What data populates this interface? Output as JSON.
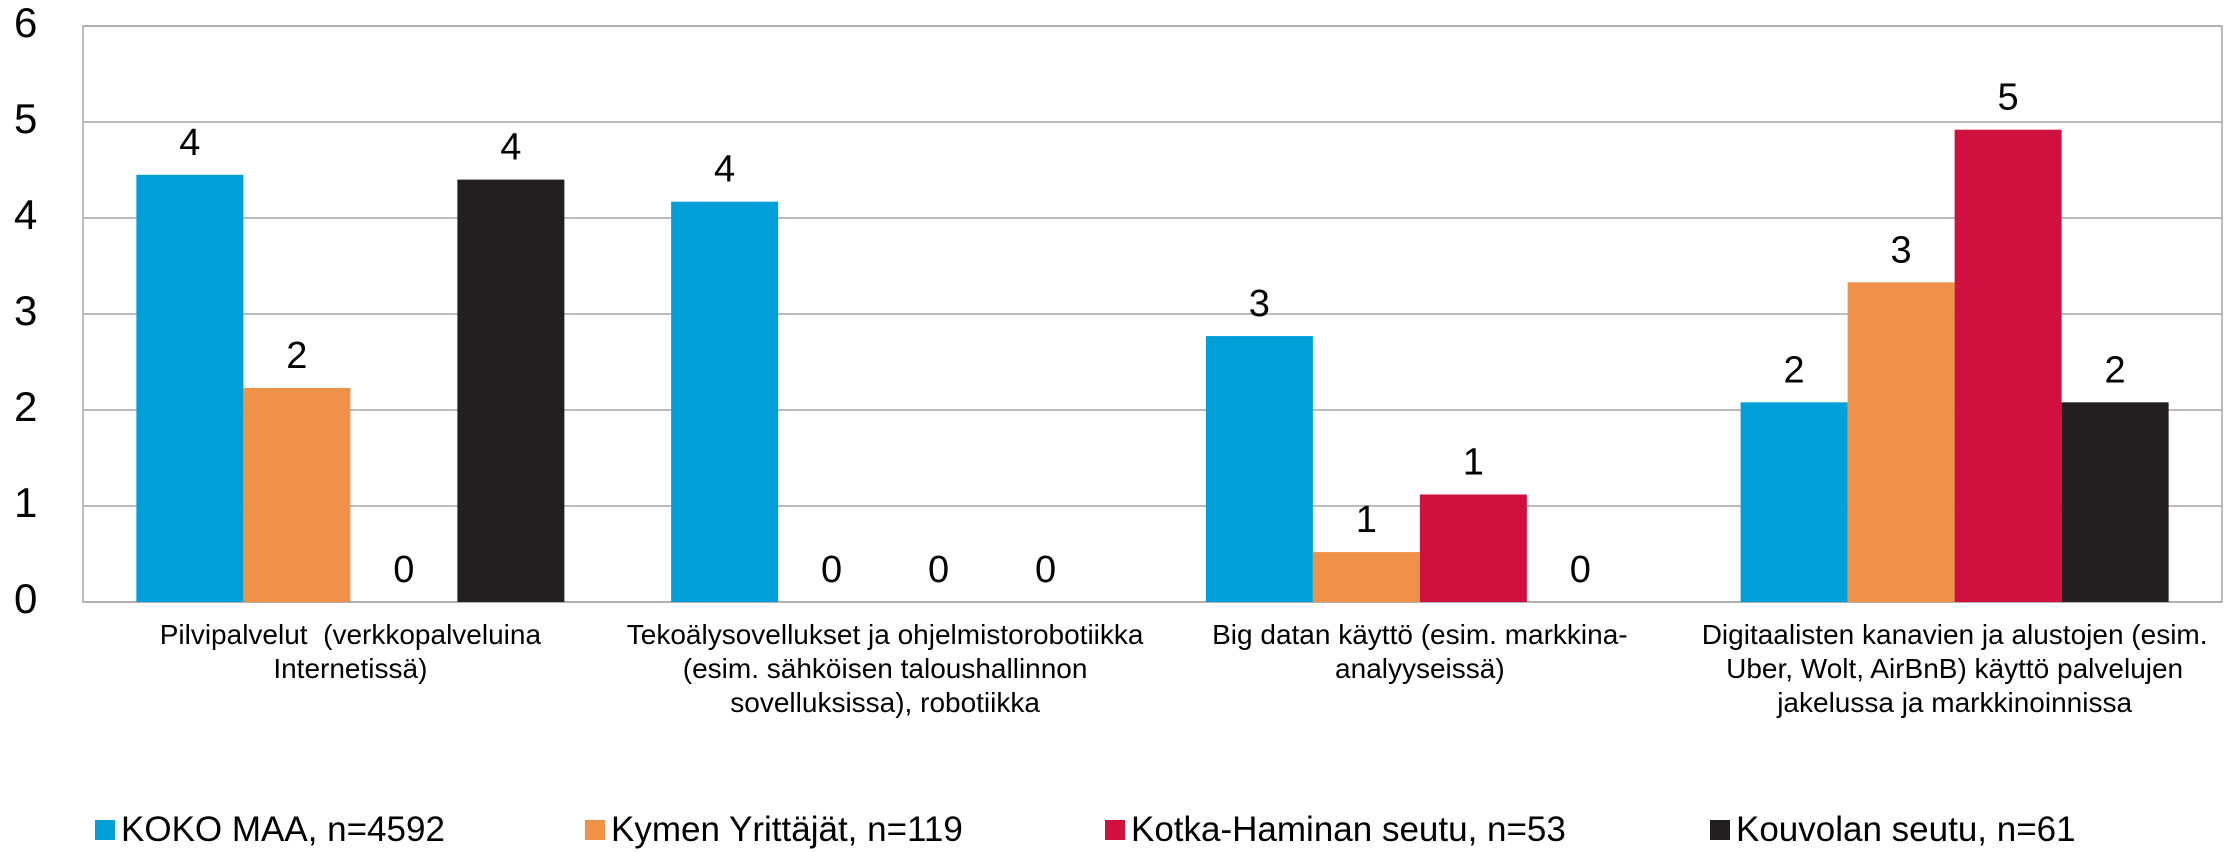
{
  "chart_data": {
    "type": "bar",
    "categories": [
      "Pilvipalvelut  (verkkopalveluina Internetissä)",
      "Tekoälysovellukset ja ohjelmistorobotiikka (esim. sähköisen taloushallinnon sovelluksissa), robotiikka",
      "Big datan käyttö (esim. markkina-analyyseissä)",
      "Digitaalisten kanavien ja alustojen (esim. Uber, Wolt, AirBnB) käyttö palvelujen jakelussa ja markkinoinnissa"
    ],
    "series": [
      {
        "name": "KOKO MAA, n=4592",
        "color": "#009fda",
        "values": [
          4.45,
          4.17,
          2.77,
          2.08
        ],
        "value_labels": [
          "4",
          "4",
          "3",
          "2"
        ]
      },
      {
        "name": "Kymen Yrittäjät, n=119",
        "color": "#f0914a",
        "values": [
          2.23,
          0,
          0.52,
          3.33
        ],
        "value_labels": [
          "2",
          "0",
          "1",
          "3"
        ]
      },
      {
        "name": "Kotka-Haminan seutu, n=53",
        "color": "#d0103f",
        "values": [
          0,
          0,
          1.12,
          4.92
        ],
        "value_labels": [
          "0",
          "0",
          "1",
          "5"
        ]
      },
      {
        "name": "Kouvolan seutu, n=61",
        "color": "#231f20",
        "values": [
          4.4,
          0,
          0,
          2.08
        ],
        "value_labels": [
          "4",
          "0",
          "0",
          "2"
        ]
      }
    ],
    "ylim": [
      0,
      6
    ],
    "yticks": [
      0,
      1,
      2,
      3,
      4,
      5,
      6
    ],
    "grid": true,
    "legend": "bottom"
  }
}
